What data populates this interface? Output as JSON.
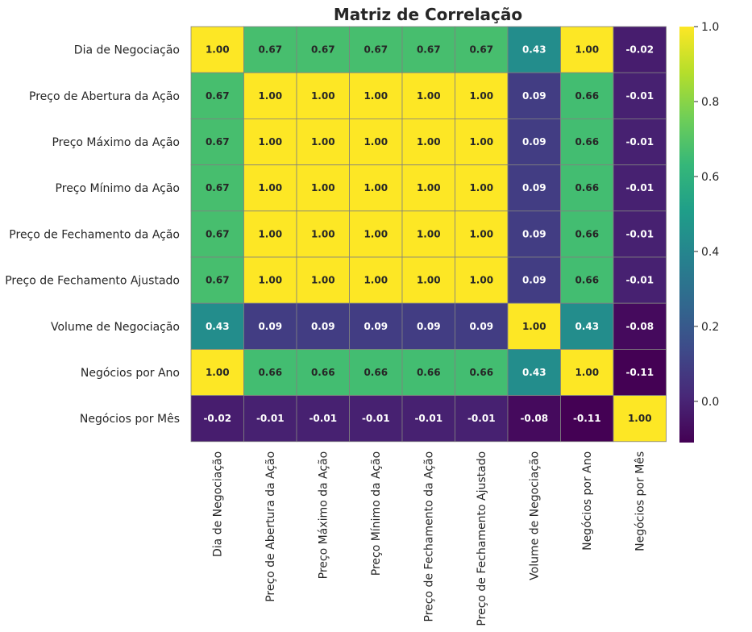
{
  "chart_data": {
    "type": "heatmap",
    "title": "Matriz de Correlação",
    "colormap": "viridis",
    "vmin": -0.11,
    "vmax": 1.0,
    "grid": true,
    "legend_placement": "right",
    "rows": [
      "Dia de Negociação",
      "Preço de Abertura da Ação",
      "Preço Máximo da Ação",
      "Preço Mínimo da Ação",
      "Preço de Fechamento da Ação",
      "Preço de Fechamento Ajustado",
      "Volume de Negociação",
      "Negócios por Ano",
      "Negócios por Mês"
    ],
    "columns": [
      "Dia de Negociação",
      "Preço de Abertura da Ação",
      "Preço Máximo da Ação",
      "Preço Mínimo da Ação",
      "Preço de Fechamento da Ação",
      "Preço de Fechamento Ajustado",
      "Volume de Negociação",
      "Negócios por Ano",
      "Negócios por Mês"
    ],
    "values": [
      [
        1.0,
        0.67,
        0.67,
        0.67,
        0.67,
        0.67,
        0.43,
        1.0,
        -0.02
      ],
      [
        0.67,
        1.0,
        1.0,
        1.0,
        1.0,
        1.0,
        0.09,
        0.66,
        -0.01
      ],
      [
        0.67,
        1.0,
        1.0,
        1.0,
        1.0,
        1.0,
        0.09,
        0.66,
        -0.01
      ],
      [
        0.67,
        1.0,
        1.0,
        1.0,
        1.0,
        1.0,
        0.09,
        0.66,
        -0.01
      ],
      [
        0.67,
        1.0,
        1.0,
        1.0,
        1.0,
        1.0,
        0.09,
        0.66,
        -0.01
      ],
      [
        0.67,
        1.0,
        1.0,
        1.0,
        1.0,
        1.0,
        0.09,
        0.66,
        -0.01
      ],
      [
        0.43,
        0.09,
        0.09,
        0.09,
        0.09,
        0.09,
        1.0,
        0.43,
        -0.08
      ],
      [
        1.0,
        0.66,
        0.66,
        0.66,
        0.66,
        0.66,
        0.43,
        1.0,
        -0.11
      ],
      [
        -0.02,
        -0.01,
        -0.01,
        -0.01,
        -0.01,
        -0.01,
        -0.08,
        -0.11,
        1.0
      ]
    ],
    "value_format": "0.00",
    "colorbar_ticks": [
      "0.0",
      "0.2",
      "0.4",
      "0.6",
      "0.8",
      "1.0"
    ],
    "colorbar_tick_values": [
      0.0,
      0.2,
      0.4,
      0.6,
      0.8,
      1.0
    ],
    "grid_color": "#808080"
  }
}
